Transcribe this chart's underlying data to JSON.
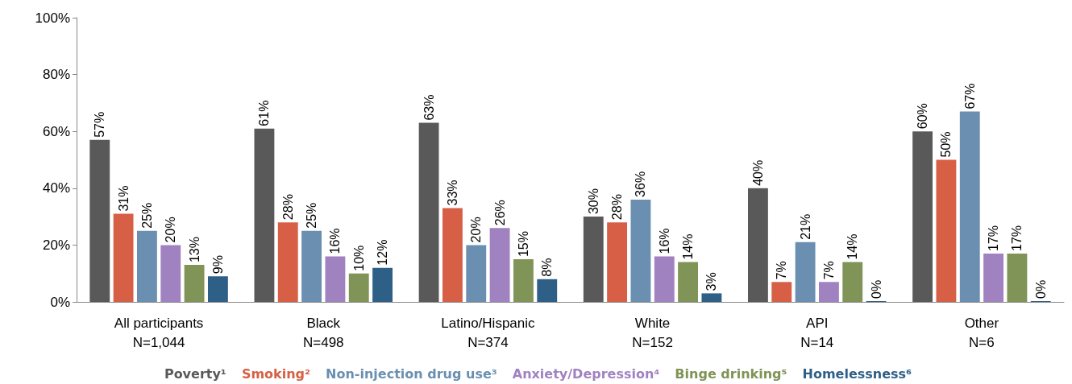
{
  "chart_data": {
    "type": "bar",
    "categories": [
      "All participants\nN=1,044",
      "Black\nN=498",
      "Latino/Hispanic\nN=374",
      "White\nN=152",
      "API\nN=14",
      "Other\nN=6"
    ],
    "series": [
      {
        "name": "Poverty¹",
        "color": "#595959",
        "values": [
          57,
          61,
          63,
          30,
          40,
          60
        ],
        "value_labels": [
          "57%",
          "61%",
          "63%",
          "30%",
          "40%",
          "60%"
        ]
      },
      {
        "name": "Smoking²",
        "color": "#d65f45",
        "values": [
          31,
          28,
          33,
          28,
          7,
          50
        ],
        "value_labels": [
          "31%",
          "28%",
          "33%",
          "28%",
          "7%",
          "50%"
        ]
      },
      {
        "name": "Non-injection drug use³",
        "color": "#6a8fb0",
        "values": [
          25,
          25,
          20,
          36,
          21,
          67
        ],
        "value_labels": [
          "25%",
          "25%",
          "20%",
          "36%",
          "21%",
          "67%"
        ]
      },
      {
        "name": "Anxiety/Depression⁴",
        "color": "#a182c1",
        "values": [
          20,
          16,
          26,
          16,
          7,
          17
        ],
        "value_labels": [
          "20%",
          "16%",
          "26%",
          "16%",
          "7%",
          "17%"
        ]
      },
      {
        "name": "Binge drinking⁵",
        "color": "#7f9456",
        "values": [
          13,
          10,
          15,
          14,
          14,
          17
        ],
        "value_labels": [
          "13%",
          "10%",
          "15%",
          "14%",
          "14%",
          "17%"
        ]
      },
      {
        "name": "Homelessness⁶",
        "color": "#2e5f87",
        "values": [
          9,
          12,
          8,
          3,
          0,
          0
        ],
        "value_labels": [
          "9%",
          "12%",
          "8%",
          "3%",
          "0%",
          "0%"
        ]
      }
    ],
    "ylim": [
      0,
      100
    ],
    "yticks": [
      {
        "value": 0,
        "label": "0%"
      },
      {
        "value": 20,
        "label": "20%"
      },
      {
        "value": 40,
        "label": "40%"
      },
      {
        "value": 60,
        "label": "60%"
      },
      {
        "value": 80,
        "label": "80%"
      },
      {
        "value": 100,
        "label": "100%"
      }
    ],
    "legend": "bottom"
  }
}
